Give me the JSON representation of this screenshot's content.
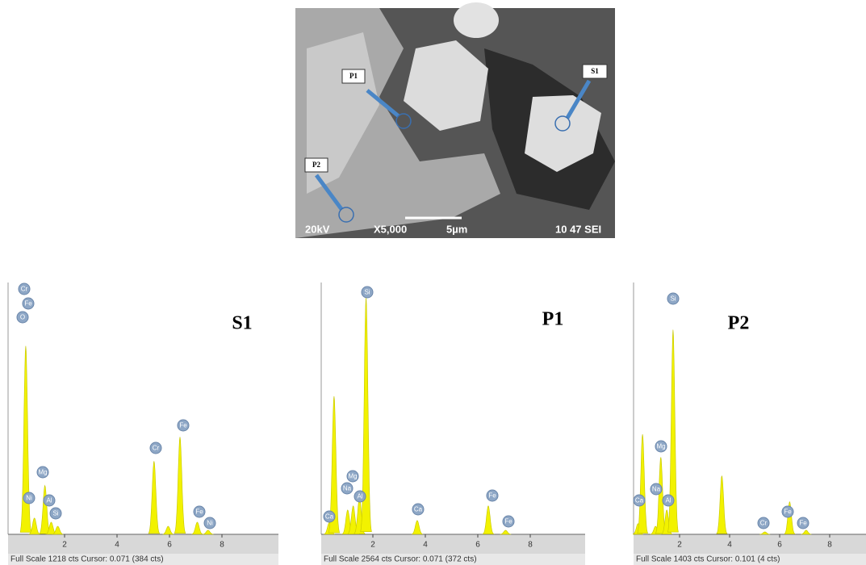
{
  "sem": {
    "labels": [
      "P1",
      "S1",
      "P2"
    ],
    "info": [
      "20kV",
      "X5,000",
      "5µm",
      "10 47 SEI"
    ]
  },
  "chart_data": [
    {
      "type": "spectrum",
      "title": "S1",
      "footer": "Full Scale 1218 cts Cursor: 0.071  (384 cts)",
      "x": [
        0.52,
        0.85,
        1.25,
        1.49,
        1.74,
        5.41,
        5.95,
        6.4,
        7.06,
        7.47
      ],
      "values": [
        911,
        79,
        236,
        59,
        39,
        354,
        39,
        471,
        59,
        20
      ],
      "labels": [
        "Cr",
        "Fe",
        "O",
        "Mg",
        "Ni",
        "Al",
        "Si",
        "Cr",
        "Fe",
        "Fe",
        "Ni"
      ],
      "xlim": [
        0,
        10
      ],
      "xticks": [
        2,
        4,
        6,
        8
      ],
      "ylim": [
        0,
        1218
      ],
      "color": "#f2f200"
    },
    {
      "type": "spectrum",
      "title": "P1",
      "footer": "Full Scale 2564 cts Cursor: 0.071  (372 cts)",
      "x": [
        0.34,
        0.52,
        1.04,
        1.25,
        1.49,
        1.74,
        3.69,
        6.4,
        7.06
      ],
      "values": [
        120,
        1406,
        248,
        289,
        372,
        2415,
        141,
        289,
        41
      ],
      "labels": [
        "Si",
        "Mg",
        "Na",
        "Al",
        "Ca",
        "Ca",
        "Fe",
        "Fe"
      ],
      "xlim": [
        0,
        10
      ],
      "xticks": [
        2,
        4,
        6,
        8
      ],
      "ylim": [
        0,
        2564
      ],
      "color": "#f2f200"
    },
    {
      "type": "spectrum",
      "title": "P2",
      "footer": "Full Scale 1403 cts Cursor: 0.101  (4 cts)",
      "x": [
        0.34,
        0.52,
        1.04,
        1.25,
        1.49,
        1.74,
        3.69,
        5.41,
        6.4,
        7.06
      ],
      "values": [
        60,
        557,
        45,
        430,
        136,
        1140,
        326,
        14,
        181,
        23
      ],
      "labels": [
        "Si",
        "Mg",
        "Na",
        "Al",
        "Ca",
        "Cr",
        "Fe",
        "Fe"
      ],
      "xlim": [
        0,
        10
      ],
      "xticks": [
        2,
        4,
        6,
        8
      ],
      "ylim": [
        0,
        1403
      ],
      "color": "#f2f200"
    }
  ]
}
